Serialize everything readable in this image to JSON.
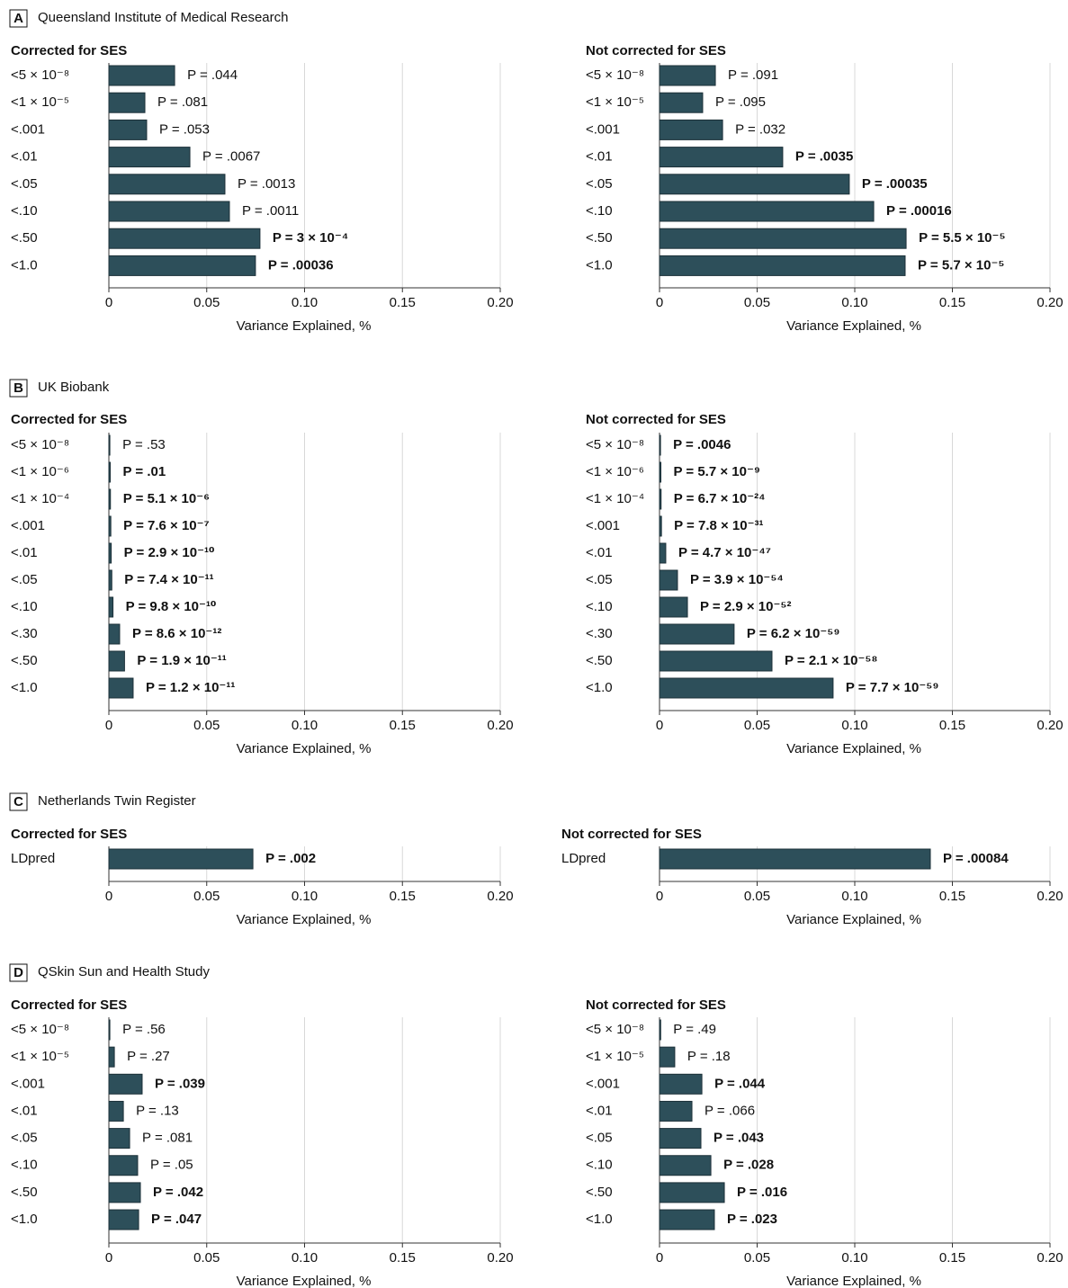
{
  "chart_data": [
    {
      "type": "bar",
      "orientation": "horizontal",
      "panel_label": "A",
      "panel_title": "Queensland Institute of Medical Research",
      "title": "Corrected for SES",
      "categories": [
        "<5 × 10⁻⁸",
        "<1 × 10⁻⁵",
        "<.001",
        "<.01",
        "<.05",
        "<.10",
        "<.50",
        "<1.0"
      ],
      "values": [
        0.0336,
        0.0184,
        0.0193,
        0.0414,
        0.0593,
        0.0616,
        0.0772,
        0.0749
      ],
      "p_value_labels": [
        "P = .044",
        "P = .081",
        "P = .053",
        "P = .0067",
        "P = .0013",
        "P = .0011",
        "P = 3 × 10⁻⁴",
        "P = .00036"
      ],
      "p_value_bold": [
        false,
        false,
        false,
        false,
        false,
        false,
        true,
        true
      ],
      "color": "#2d4f5a",
      "xlim": [
        0,
        0.2
      ],
      "xticks": [
        0,
        0.05,
        {
          "value": 0.1,
          "label": "0.10"
        },
        0.15,
        {
          "value": 0.2,
          "label": "0.20"
        }
      ],
      "xlabel": "Variance Explained, %",
      "grid": true
    },
    {
      "type": "bar",
      "orientation": "horizontal",
      "title": "Not corrected for SES",
      "categories": [
        "<5 × 10⁻⁸",
        "<1 × 10⁻⁵",
        "<.001",
        "<.01",
        "<.05",
        "<.10",
        "<.50",
        "<1.0"
      ],
      "values": [
        0.0286,
        0.0221,
        0.0323,
        0.0631,
        0.0972,
        0.1097,
        0.1263,
        0.1258
      ],
      "p_value_labels": [
        "P = .091",
        "P = .095",
        "P = .032",
        "P = .0035",
        "P = .00035",
        "P = .00016",
        "P = 5.5 × 10⁻⁵",
        "P = 5.7 × 10⁻⁵"
      ],
      "p_value_bold": [
        false,
        false,
        false,
        true,
        true,
        true,
        true,
        true
      ],
      "color": "#2d4f5a",
      "xlim": [
        0,
        0.2
      ],
      "xticks": [
        0,
        0.05,
        {
          "value": 0.1,
          "label": "0.10"
        },
        0.15,
        {
          "value": 0.2,
          "label": "0.20"
        }
      ],
      "xlabel": "Variance Explained, %",
      "grid": true
    },
    {
      "type": "bar",
      "orientation": "horizontal",
      "panel_label": "B",
      "panel_title": "UK Biobank",
      "title": "Corrected for SES",
      "categories": [
        "<5 × 10⁻⁸",
        "<1 × 10⁻⁶",
        "<1 × 10⁻⁴",
        "<.001",
        "<.01",
        "<.05",
        "<.10",
        "<.30",
        "<.50",
        "<1.0"
      ],
      "values": [
        0.0005,
        0.0007,
        0.0008,
        0.001,
        0.0012,
        0.0015,
        0.0021,
        0.0055,
        0.008,
        0.0124
      ],
      "p_value_labels": [
        "P = .53",
        "P = .01",
        "P = 5.1 × 10⁻⁶",
        "P = 7.6 × 10⁻⁷",
        "P = 2.9 × 10⁻¹⁰",
        "P = 7.4 × 10⁻¹¹",
        "P = 9.8 × 10⁻¹⁰",
        "P = 8.6 × 10⁻¹²",
        "P = 1.9 × 10⁻¹¹",
        "P = 1.2 × 10⁻¹¹"
      ],
      "p_value_bold": [
        false,
        true,
        true,
        true,
        true,
        true,
        true,
        true,
        true,
        true
      ],
      "color": "#2d4f5a",
      "xlim": [
        0,
        0.2
      ],
      "xticks": [
        0,
        0.05,
        {
          "value": 0.1,
          "label": "0.10"
        },
        0.15,
        {
          "value": 0.2,
          "label": "0.20"
        }
      ],
      "xlabel": "Variance Explained, %",
      "grid": true
    },
    {
      "type": "bar",
      "orientation": "horizontal",
      "title": "Not corrected for SES",
      "categories": [
        "<5 × 10⁻⁸",
        "<1 × 10⁻⁶",
        "<1 × 10⁻⁴",
        "<.001",
        "<.01",
        "<.05",
        "<.10",
        "<.30",
        "<.50",
        "<1.0"
      ],
      "values": [
        0.0005,
        0.0007,
        0.0008,
        0.001,
        0.0032,
        0.0092,
        0.0143,
        0.0382,
        0.0576,
        0.0889
      ],
      "p_value_labels": [
        "P = .0046",
        "P = 5.7 × 10⁻⁹",
        "P = 6.7 × 10⁻²⁴",
        "P = 7.8 × 10⁻³¹",
        "P = 4.7 × 10⁻⁴⁷",
        "P = 3.9 × 10⁻⁵⁴",
        "P = 2.9 × 10⁻⁵²",
        "P = 6.2 × 10⁻⁵⁹",
        "P = 2.1 × 10⁻⁵⁸",
        "P = 7.7 × 10⁻⁵⁹"
      ],
      "p_value_bold": [
        true,
        true,
        true,
        true,
        true,
        true,
        true,
        true,
        true,
        true
      ],
      "color": "#2d4f5a",
      "xlim": [
        0,
        0.2
      ],
      "xticks": [
        0,
        0.05,
        {
          "value": 0.1,
          "label": "0.10"
        },
        0.15,
        {
          "value": 0.2,
          "label": "0.20"
        }
      ],
      "xlabel": "Variance Explained, %",
      "grid": true
    },
    {
      "type": "bar",
      "orientation": "horizontal",
      "panel_label": "C",
      "panel_title": "Netherlands Twin Register",
      "title": "Corrected for SES",
      "categories": [
        "LDpred"
      ],
      "values": [
        0.0736
      ],
      "p_value_labels": [
        "P = .002"
      ],
      "p_value_bold": [
        true
      ],
      "color": "#2d4f5a",
      "xlim": [
        0,
        0.2
      ],
      "xticks": [
        0,
        0.05,
        {
          "value": 0.1,
          "label": "0.10"
        },
        0.15,
        {
          "value": 0.2,
          "label": "0.20"
        }
      ],
      "xlabel": "Variance Explained, %",
      "grid": true
    },
    {
      "type": "bar",
      "orientation": "horizontal",
      "title": "Not corrected for SES",
      "categories": [
        "LDpred"
      ],
      "values": [
        0.1387
      ],
      "p_value_labels": [
        "P = .00084"
      ],
      "p_value_bold": [
        true
      ],
      "color": "#2d4f5a",
      "xlim": [
        0,
        0.2
      ],
      "xticks": [
        0,
        0.05,
        {
          "value": 0.1,
          "label": "0.10"
        },
        0.15,
        {
          "value": 0.2,
          "label": "0.20"
        }
      ],
      "xlabel": "Variance Explained, %",
      "grid": true
    },
    {
      "type": "bar",
      "orientation": "horizontal",
      "panel_label": "D",
      "panel_title": "QSkin Sun and Health Study",
      "title": "Corrected for SES",
      "categories": [
        "<5 × 10⁻⁸",
        "<1 × 10⁻⁵",
        "<.001",
        "<.01",
        "<.05",
        "<.10",
        "<.50",
        "<1.0"
      ],
      "values": [
        0.0005,
        0.0028,
        0.017,
        0.0074,
        0.0106,
        0.0147,
        0.0161,
        0.0152
      ],
      "p_value_labels": [
        "P = .56",
        "P = .27",
        "P = .039",
        "P = .13",
        "P = .081",
        "P = .05",
        "P = .042",
        "P = .047"
      ],
      "p_value_bold": [
        false,
        false,
        true,
        false,
        false,
        false,
        true,
        true
      ],
      "color": "#2d4f5a",
      "xlim": [
        0,
        0.2
      ],
      "xticks": [
        0,
        0.05,
        {
          "value": 0.1,
          "label": "0.10"
        },
        0.15,
        {
          "value": 0.2,
          "label": "0.20"
        }
      ],
      "xlabel": "Variance Explained, %",
      "grid": true
    },
    {
      "type": "bar",
      "orientation": "horizontal",
      "title": "Not corrected for SES",
      "categories": [
        "<5 × 10⁻⁸",
        "<1 × 10⁻⁵",
        "<.001",
        "<.01",
        "<.05",
        "<.10",
        "<.50",
        "<1.0"
      ],
      "values": [
        0.0006,
        0.0078,
        0.0217,
        0.0166,
        0.0212,
        0.0263,
        0.0332,
        0.0281
      ],
      "p_value_labels": [
        "P = .49",
        "P = .18",
        "P = .044",
        "P = .066",
        "P = .043",
        "P = .028",
        "P = .016",
        "P = .023"
      ],
      "p_value_bold": [
        false,
        false,
        true,
        false,
        true,
        true,
        true,
        true
      ],
      "color": "#2d4f5a",
      "xlim": [
        0,
        0.2
      ],
      "xticks": [
        0,
        0.05,
        {
          "value": 0.1,
          "label": "0.10"
        },
        0.15,
        {
          "value": 0.2,
          "label": "0.20"
        }
      ],
      "xlabel": "Variance Explained, %",
      "grid": true
    }
  ]
}
